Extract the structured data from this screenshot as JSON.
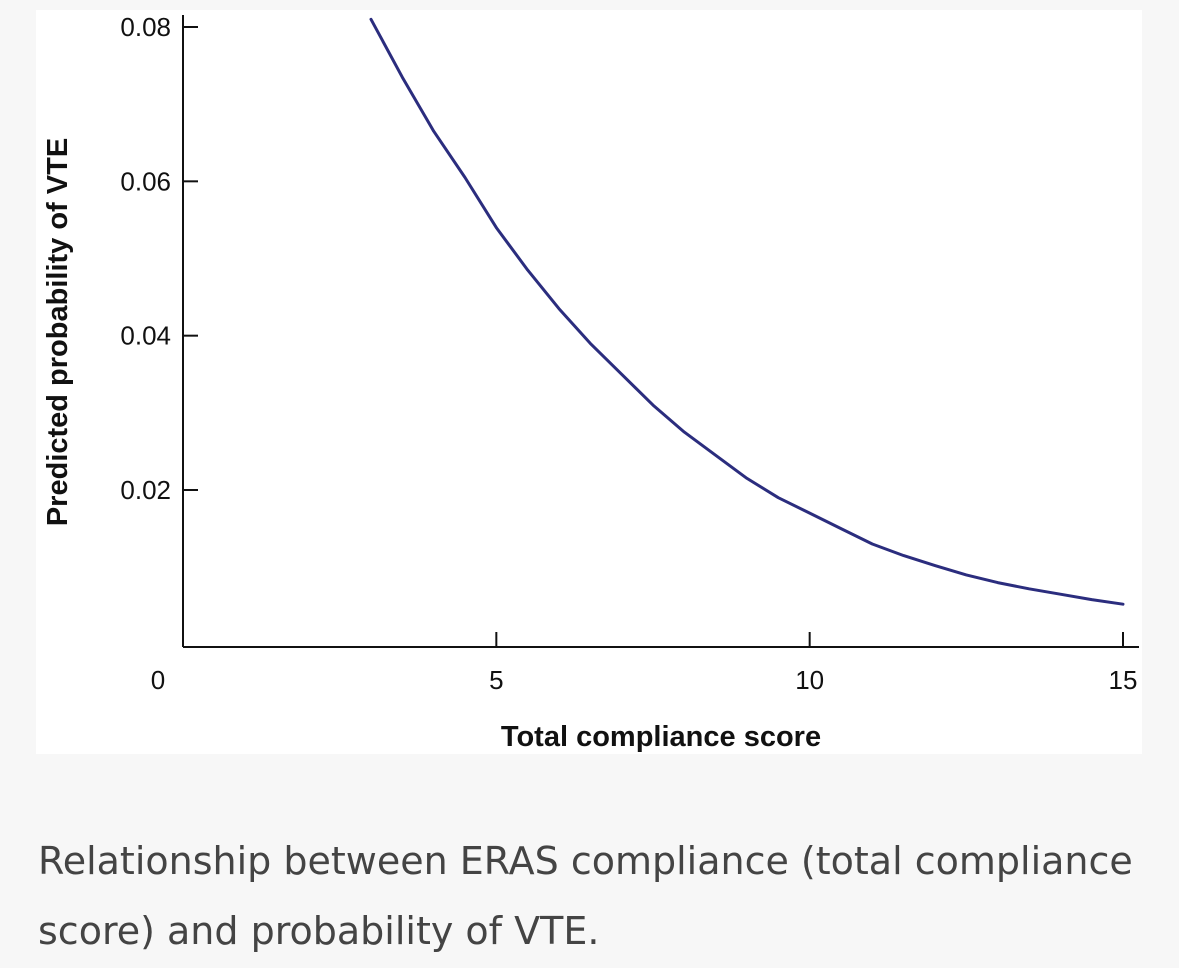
{
  "caption": "Relationship between ERAS compliance (total compliance score) and probability of VTE.",
  "colors": {
    "line": "#2b2d7e",
    "axis": "#111111",
    "caption": "#444444",
    "page_background": "#f7f7f7",
    "figure_background": "#ffffff"
  },
  "chart_data": {
    "type": "line",
    "xlabel": "Total compliance score",
    "ylabel": "Predicted probability of VTE",
    "xlim": [
      0,
      15
    ],
    "ylim": [
      0,
      0.08
    ],
    "x_origin_label": "0",
    "xticks": [
      5,
      10,
      15
    ],
    "xtick_labels": [
      "5",
      "10",
      "15"
    ],
    "yticks": [
      0.02,
      0.04,
      0.06,
      0.08
    ],
    "ytick_labels": [
      "0.02",
      "0.04",
      "0.06",
      "0.08"
    ],
    "grid": false,
    "legend": "none",
    "series": [
      {
        "x": [
          3.0,
          3.5,
          4.0,
          4.5,
          5.0,
          5.5,
          6.0,
          6.5,
          7.0,
          7.5,
          8.0,
          8.5,
          9.0,
          9.5,
          10.0,
          10.5,
          11.0,
          11.5,
          12.0,
          12.5,
          13.0,
          13.5,
          14.0,
          14.5,
          15.0
        ],
        "y": [
          0.081,
          0.0735,
          0.0665,
          0.0605,
          0.054,
          0.0485,
          0.0435,
          0.039,
          0.035,
          0.031,
          0.0275,
          0.0245,
          0.0215,
          0.019,
          0.017,
          0.015,
          0.013,
          0.0115,
          0.0102,
          0.009,
          0.008,
          0.0072,
          0.0065,
          0.0058,
          0.0052
        ]
      }
    ]
  }
}
